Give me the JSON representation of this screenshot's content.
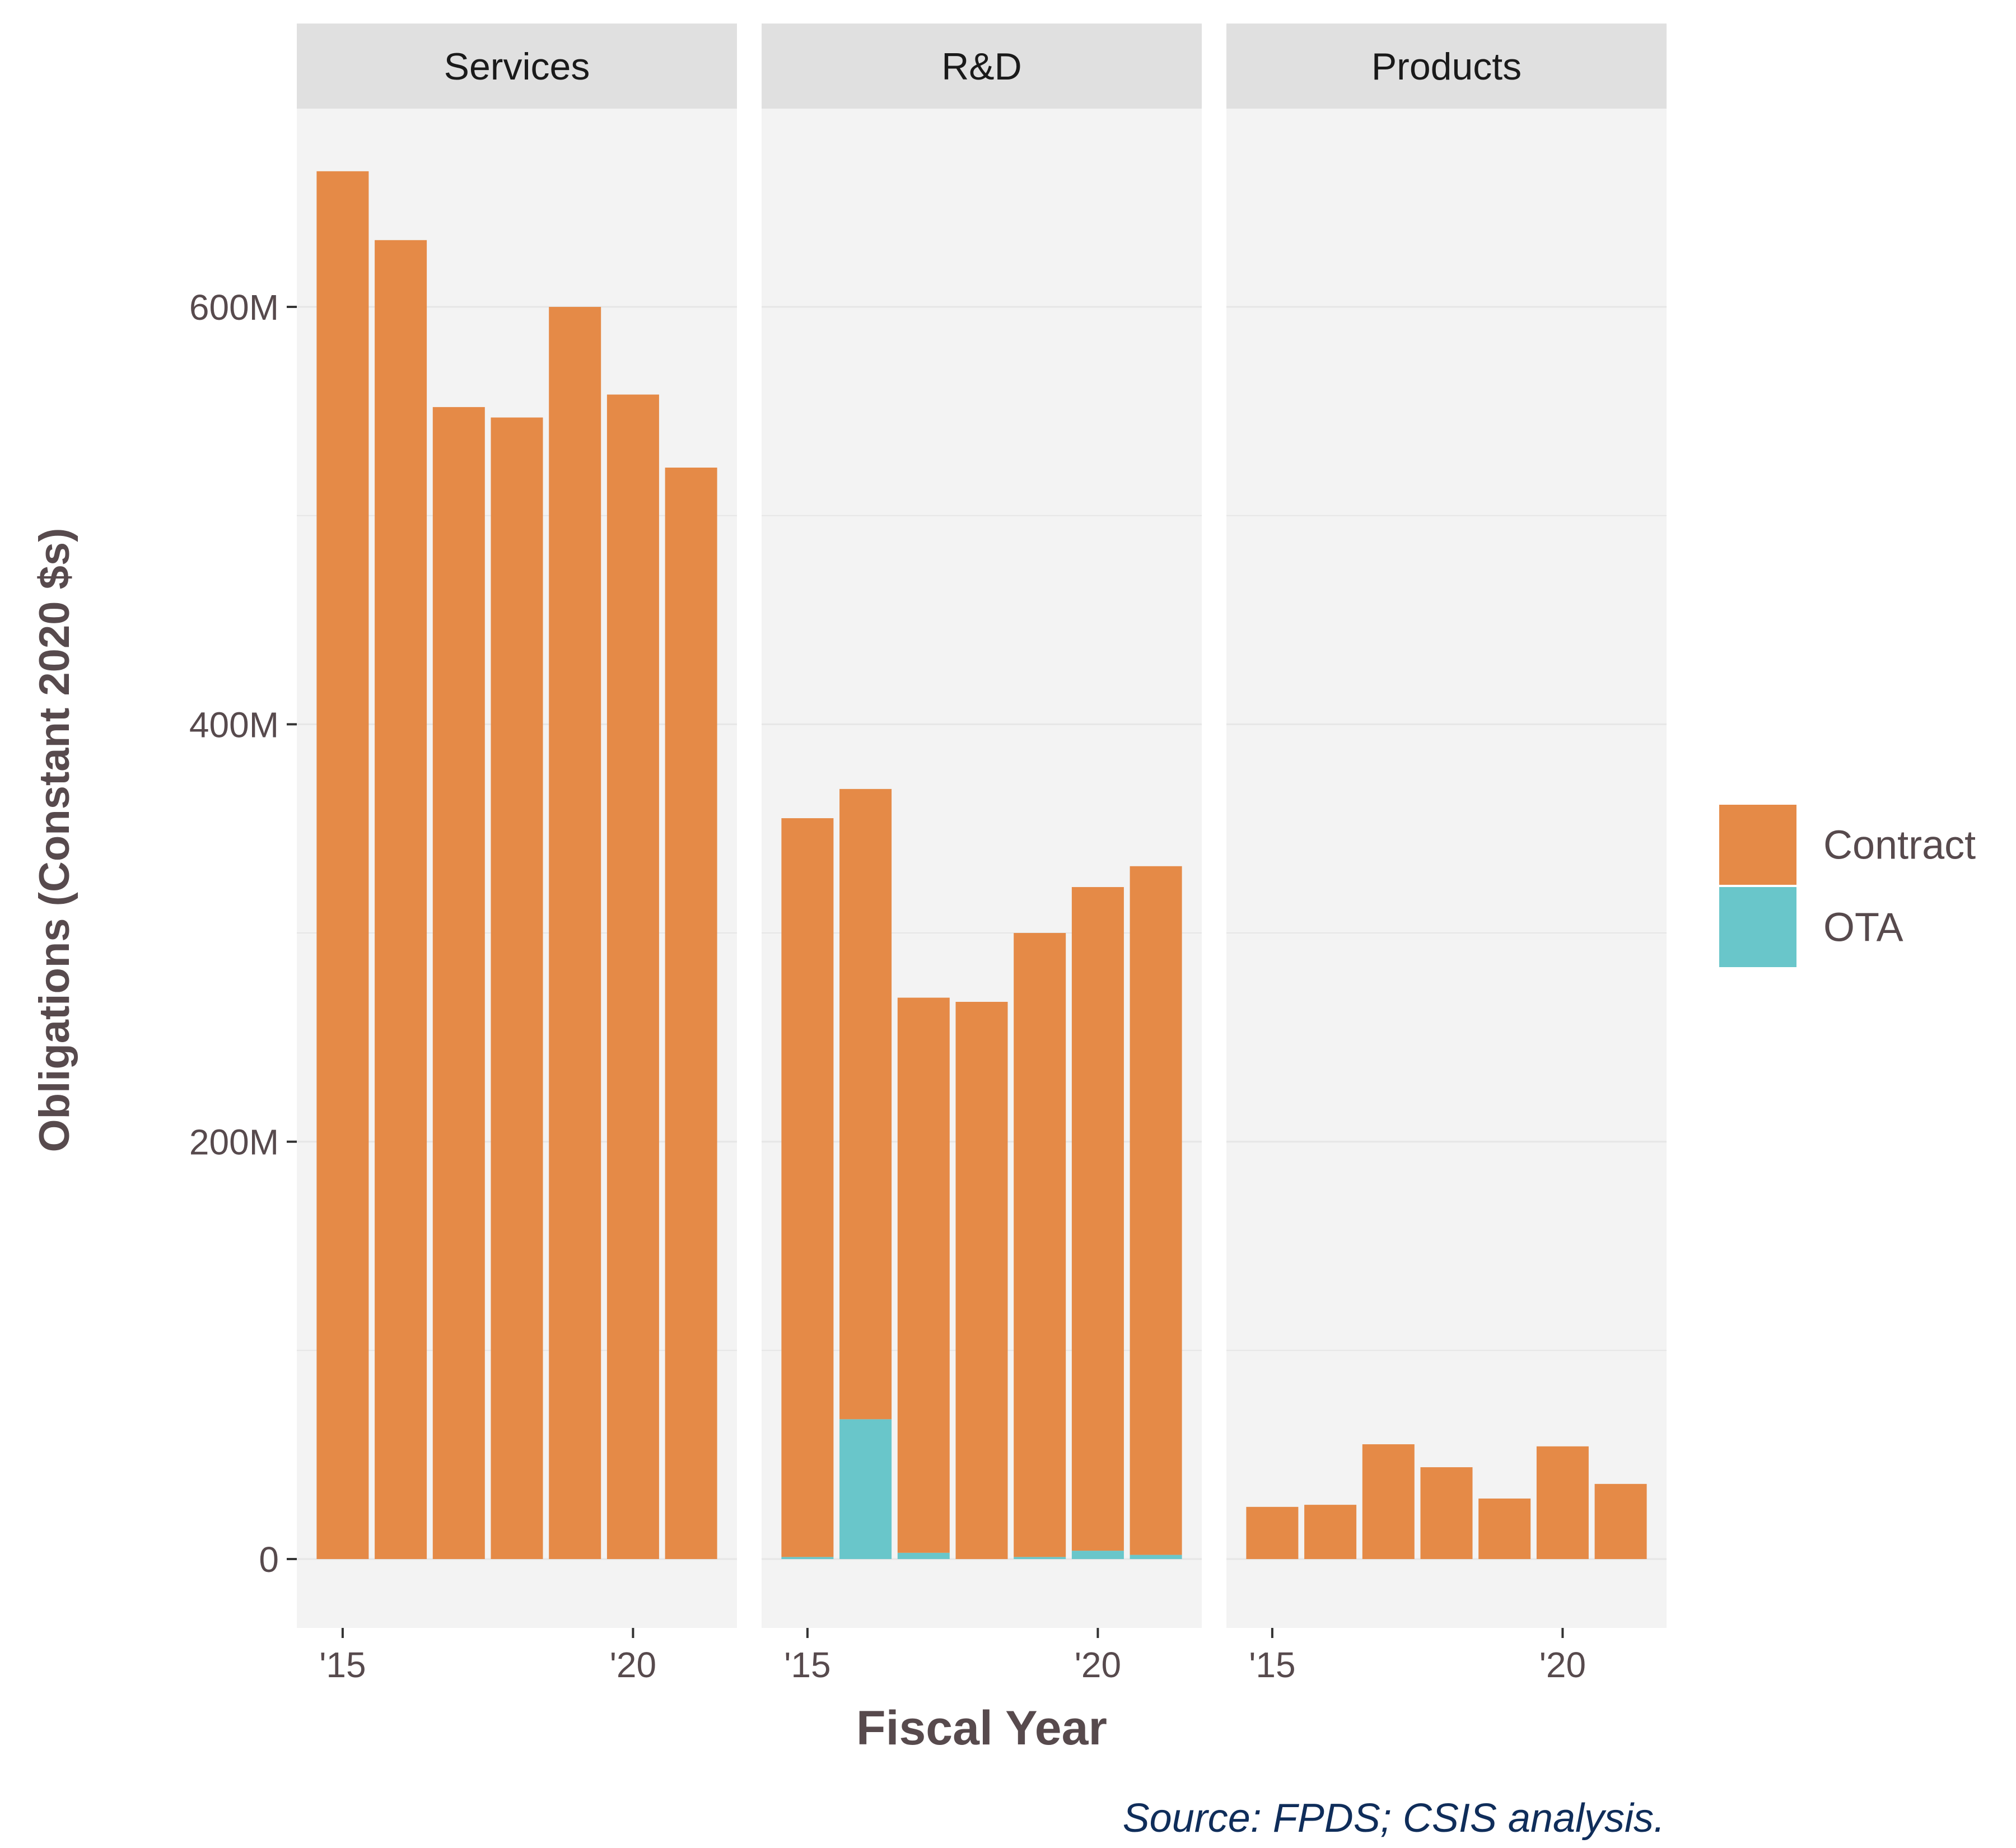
{
  "chart_data": {
    "type": "bar",
    "stacked": true,
    "facet_by": "Category",
    "facets": [
      {
        "name": "Services",
        "x": [
          2015,
          2016,
          2017,
          2018,
          2019,
          2020,
          2021
        ],
        "series": [
          {
            "name": "Contract",
            "values": [
              665,
              632,
              552,
              547,
              600,
              558,
              523
            ]
          },
          {
            "name": "OTA",
            "values": [
              0,
              0,
              0,
              0,
              0,
              0,
              0
            ]
          }
        ]
      },
      {
        "name": "R&D",
        "x": [
          2015,
          2016,
          2017,
          2018,
          2019,
          2020,
          2021
        ],
        "series": [
          {
            "name": "Contract",
            "values": [
              354,
              302,
              266,
              267,
              299,
              318,
              330
            ]
          },
          {
            "name": "OTA",
            "values": [
              1,
              67,
              3,
              0,
              1,
              4,
              2
            ]
          }
        ]
      },
      {
        "name": "Products",
        "x": [
          2015,
          2016,
          2017,
          2018,
          2019,
          2020,
          2021
        ],
        "series": [
          {
            "name": "Contract",
            "values": [
              25,
              26,
              55,
              44,
              29,
              54,
              36
            ]
          },
          {
            "name": "OTA",
            "values": [
              0,
              0,
              0,
              0,
              0,
              0,
              0
            ]
          }
        ]
      }
    ],
    "x_ticks": [
      {
        "value": 2015,
        "label": "'15"
      },
      {
        "value": 2020,
        "label": "'20"
      }
    ],
    "y_ticks": [
      {
        "value": 0,
        "label": "0"
      },
      {
        "value": 200,
        "label": "200M"
      },
      {
        "value": 400,
        "label": "400M"
      },
      {
        "value": 600,
        "label": "600M"
      }
    ],
    "y_minor_ticks": [
      100,
      300,
      500
    ],
    "ylim": [
      -33,
      695
    ],
    "xlabel": "Fiscal Year",
    "ylabel": "Obligations (Constant 2020 $s)",
    "legend": {
      "placement": "right",
      "entries": [
        {
          "name": "Contract",
          "color": "#E58A47"
        },
        {
          "name": "OTA",
          "color": "#69C6CA"
        }
      ]
    },
    "caption": "Source: FPDS; CSIS analysis.",
    "grid": true,
    "colors": {
      "panel_bg": "#F3F3F3",
      "strip_bg": "#E0E0E0",
      "gridline": "#E6E6E6",
      "axis_text": "#574A4D",
      "caption_text": "#0F2D5A"
    }
  }
}
